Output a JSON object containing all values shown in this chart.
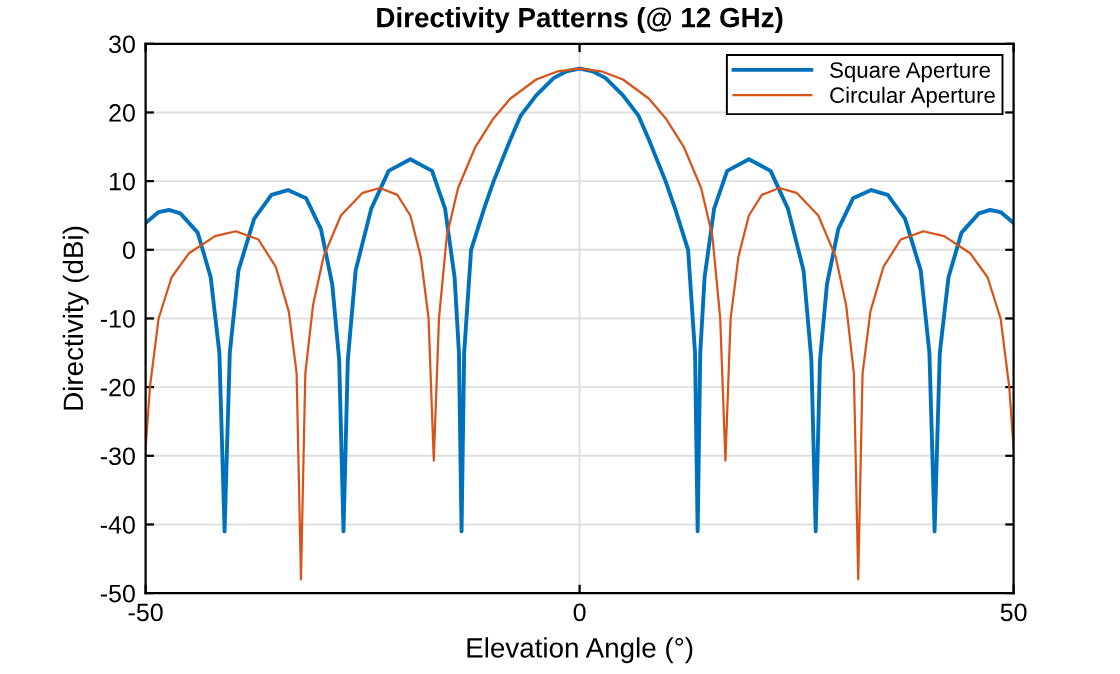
{
  "chart_data": {
    "type": "line",
    "title": "Directivity Patterns (@ 12 GHz)",
    "xlabel": "Elevation Angle (°)",
    "ylabel": "Directivity (dBi)",
    "xlim": [
      -50,
      50
    ],
    "ylim": [
      -50,
      30
    ],
    "xticks": [
      -50,
      0,
      50
    ],
    "yticks": [
      -50,
      -40,
      -30,
      -20,
      -10,
      0,
      10,
      20,
      30
    ],
    "grid": true,
    "legend": "top right",
    "marker": "none",
    "line_style": "solid",
    "series": [
      {
        "name": "Square Aperture",
        "color": "#0072bd",
        "x": [
          -50,
          -48.5,
          -47.3,
          -46,
          -44,
          -42.5,
          -41.5,
          -40.9,
          -40.3,
          -39.3,
          -37.5,
          -35.5,
          -33.6,
          -31.5,
          -29.8,
          -28.5,
          -27.7,
          -27.2,
          -26.7,
          -25.8,
          -24,
          -22,
          -19.5,
          -17,
          -15.5,
          -14.4,
          -13.9,
          -13.6,
          -13.3,
          -12.5,
          -11,
          -9.9,
          -8,
          -6.8,
          -5,
          -3,
          -1.5,
          0,
          1.5,
          3,
          5,
          6.8,
          8,
          9.9,
          11,
          12.5,
          13.3,
          13.6,
          13.9,
          14.4,
          15.5,
          17,
          19.5,
          22,
          24,
          25.8,
          26.7,
          27.2,
          27.7,
          28.5,
          29.8,
          31.5,
          33.6,
          35.5,
          37.5,
          39.3,
          40.3,
          40.9,
          41.5,
          42.5,
          44,
          46,
          47.3,
          48.5,
          50
        ],
        "values": [
          3.9,
          5.5,
          5.8,
          5.3,
          2.5,
          -4,
          -15,
          -41,
          -15,
          -3,
          4.5,
          8,
          8.7,
          7.5,
          3,
          -5,
          -16,
          -41,
          -16,
          -3,
          6,
          11.5,
          13.2,
          11.5,
          6,
          -4,
          -15,
          -41,
          -15,
          0,
          6,
          10,
          16,
          19.5,
          22.5,
          25,
          26,
          26.4,
          26,
          25,
          22.5,
          19.5,
          16,
          10,
          6,
          0,
          -15,
          -41,
          -15,
          -4,
          6,
          11.5,
          13.2,
          11.5,
          6,
          -3,
          -16,
          -41,
          -16,
          -5,
          3,
          7.5,
          8.7,
          8,
          4.5,
          -3,
          -15,
          -41,
          -15,
          -4,
          2.5,
          5.3,
          5.8,
          5.5,
          3.9
        ]
      },
      {
        "name": "Circular Aperture",
        "color": "#d95319",
        "x": [
          -50,
          -49.5,
          -48.5,
          -47,
          -45,
          -42,
          -39.6,
          -37,
          -35,
          -33.5,
          -32.6,
          -32.1,
          -31.6,
          -30.7,
          -29.5,
          -27.5,
          -25,
          -23,
          -21,
          -19.5,
          -18.3,
          -17.4,
          -16.8,
          -16.2,
          -15.3,
          -14,
          -12,
          -10,
          -8,
          -5,
          -2.5,
          0,
          2.5,
          5,
          8,
          10,
          12,
          14,
          15.3,
          16.2,
          16.8,
          17.4,
          18.3,
          19.5,
          21,
          23,
          25,
          27.5,
          29.5,
          30.7,
          31.6,
          32.1,
          32.6,
          33.5,
          35,
          37,
          39.6,
          42,
          45,
          47,
          48.5,
          49.5,
          50
        ],
        "values": [
          -29,
          -20,
          -10,
          -4,
          -0.5,
          2,
          2.7,
          1.5,
          -2.5,
          -9,
          -18,
          -48,
          -18,
          -8,
          -1,
          5,
          8.3,
          9,
          8,
          5,
          -1,
          -10,
          -30.7,
          -10,
          2,
          9,
          15,
          19,
          22,
          24.8,
          26,
          26.4,
          26,
          24.8,
          22,
          19,
          15,
          9,
          2,
          -10,
          -30.7,
          -10,
          -1,
          5,
          8,
          9,
          8.3,
          5,
          -1,
          -8,
          -18,
          -48,
          -18,
          -9,
          -2.5,
          1.5,
          2.7,
          2,
          -0.5,
          -4,
          -10,
          -20,
          -29
        ]
      }
    ]
  }
}
